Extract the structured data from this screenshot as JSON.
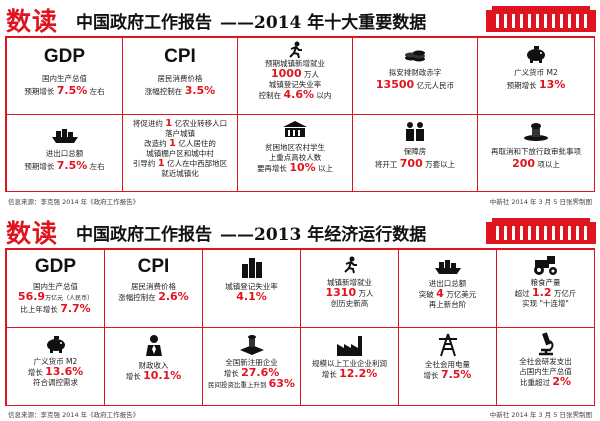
{
  "colors": {
    "accent": "#e0141e",
    "ink": "#111111"
  },
  "top": {
    "logo": "数读",
    "title": "中国政府工作报告",
    "subtitle": "——2014 年十大重要数据",
    "source": "信息来源：李克强 2014 年《政府工作报告》",
    "credit": "中新社 2014 年 3 月 5 日张霁制图",
    "gdp": {
      "label": "GDP",
      "l1": "国内生产总值",
      "pre": "预期增长",
      "num": "7.5%",
      "post": "左右"
    },
    "cpi": {
      "label": "CPI",
      "l1": "居民消费价格",
      "pre": "涨幅控制在",
      "num": "3.5%"
    },
    "jobs": {
      "icon": "person-running-icon",
      "l1": "预期城镇新增就业",
      "num1": "1000",
      "post1": "万人",
      "l2": "城镇登记失业率",
      "pre2": "控制在",
      "num2": "4.6%",
      "post2": "以内"
    },
    "deficit": {
      "icon": "coins-icon",
      "l1": "拟安排财政赤字",
      "num": "13500",
      "post": "亿元人民币"
    },
    "m2": {
      "icon": "piggy-bank-icon",
      "l1": "广义货币 M2",
      "pre": "预期增长",
      "num": "13%"
    },
    "trade": {
      "icon": "cargo-ship-icon",
      "l1": "进出口总额",
      "pre": "预期增长",
      "num": "7.5%",
      "post": "左右"
    },
    "urban": {
      "l1a": "将促进约",
      "l1n": "1",
      "l1b": "亿农业转移人口",
      "l2": "落户城镇",
      "l3a": "改造约",
      "l3n": "1",
      "l3b": "亿人居住的",
      "l4": "城镇棚户区和城中村",
      "l5a": "引导约",
      "l5n": "1",
      "l5b": "亿人在中西部地区",
      "l6": "就近城镇化"
    },
    "students": {
      "icon": "student-building-icon",
      "l1": "贫困地区农村学生",
      "l2": "上重点高校人数",
      "pre": "要再增长",
      "num": "10%",
      "post": "以上"
    },
    "housing": {
      "icon": "workers-icon",
      "l1": "保障房",
      "pre": "将开工",
      "num": "700",
      "post": "万套以上"
    },
    "approval": {
      "icon": "stamp-icon",
      "l1": "再取消和下放行政审批事项",
      "num": "200",
      "post": "项以上"
    }
  },
  "bottom": {
    "logo": "数读",
    "title": "中国政府工作报告",
    "subtitle": "——2013 年经济运行数据",
    "source": "信息来源：李克强 2014 年《政府工作报告》",
    "credit": "中新社 2014 年 3 月 5 日张霁制图",
    "gdp": {
      "label": "GDP",
      "l1": "国内生产总值",
      "num1": "56.9",
      "post1": "万亿元（人民币）",
      "pre2": "比上年增长",
      "num2": "7.7%"
    },
    "cpi": {
      "label": "CPI",
      "l1": "居民消费价格",
      "pre": "涨幅控制在",
      "num": "2.6%"
    },
    "unemp": {
      "icon": "city-buildings-icon",
      "l1": "城镇登记失业率",
      "num": "4.1%"
    },
    "jobs": {
      "icon": "person-running-icon",
      "l1": "城镇新增就业",
      "num": "1310",
      "post": "万人",
      "l2": "创历史新高"
    },
    "trade": {
      "icon": "cargo-ship-icon",
      "l1": "进出口总额",
      "pre": "突破",
      "num": "4",
      "post": "万亿美元",
      "l2": "再上新台阶"
    },
    "grain": {
      "icon": "tractor-icon",
      "l1": "粮食产量",
      "pre": "超过",
      "num": "1.2",
      "post": "万亿斤",
      "l2": "实现 \"十连增\""
    },
    "m2": {
      "icon": "piggy-bank-icon",
      "l1": "广义货币 M2",
      "pre": "增长",
      "num": "13.6%",
      "l2": "符合调控需求"
    },
    "fiscal": {
      "icon": "businessman-icon",
      "l1": "财政收入",
      "pre": "增长",
      "num": "10.1%"
    },
    "firms": {
      "icon": "registration-stamp-icon",
      "l1": "全国新注册企业",
      "pre": "增长",
      "num": "27.6%",
      "l2pre": "民间投资比重上升到",
      "num2": "63%"
    },
    "industry": {
      "icon": "factory-icon",
      "l1": "规模以上工业企业利润",
      "pre": "增长",
      "num": "12.2%"
    },
    "power": {
      "icon": "power-tower-icon",
      "l1": "全社会用电量",
      "pre": "增长",
      "num": "7.5%"
    },
    "rnd": {
      "icon": "microscope-icon",
      "l1": "全社会研发支出",
      "l2": "占国内生产总值",
      "pre": "比重超过",
      "num": "2%"
    }
  }
}
